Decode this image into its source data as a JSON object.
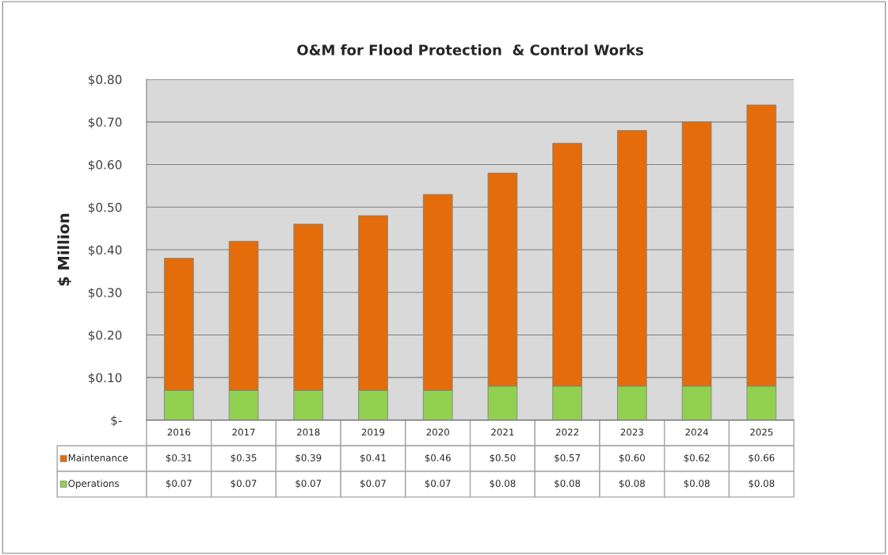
{
  "chart_data": {
    "type": "bar",
    "title": "O&M for Flood Protection  & Control Works",
    "ylabel": "$ Million",
    "categories": [
      "2016",
      "2017",
      "2018",
      "2019",
      "2020",
      "2021",
      "2022",
      "2023",
      "2024",
      "2025"
    ],
    "stacked": true,
    "series": [
      {
        "name": "Operations",
        "color": "#92d050",
        "values": [
          0.07,
          0.07,
          0.07,
          0.07,
          0.07,
          0.08,
          0.08,
          0.08,
          0.08,
          0.08
        ],
        "value_labels": [
          "$0.07",
          "$0.07",
          "$0.07",
          "$0.07",
          "$0.07",
          "$0.08",
          "$0.08",
          "$0.08",
          "$0.08",
          "$0.08"
        ]
      },
      {
        "name": "Maintenance",
        "color": "#e46c0a",
        "values": [
          0.31,
          0.35,
          0.39,
          0.41,
          0.46,
          0.5,
          0.57,
          0.6,
          0.62,
          0.66
        ],
        "value_labels": [
          "$0.31",
          "$0.35",
          "$0.39",
          "$0.41",
          "$0.46",
          "$0.50",
          "$0.57",
          "$0.60",
          "$0.62",
          "$0.66"
        ]
      }
    ],
    "ylim": [
      0,
      0.8
    ],
    "yticks": [
      {
        "value": 0,
        "label": "$-"
      },
      {
        "value": 0.1,
        "label": "$0.10"
      },
      {
        "value": 0.2,
        "label": "$0.20"
      },
      {
        "value": 0.3,
        "label": "$0.30"
      },
      {
        "value": 0.4,
        "label": "$0.40"
      },
      {
        "value": 0.5,
        "label": "$0.50"
      },
      {
        "value": 0.6,
        "label": "$0.60"
      },
      {
        "value": 0.7,
        "label": "$0.70"
      },
      {
        "value": 0.8,
        "label": "$0.80"
      }
    ],
    "grid": "y",
    "legend": "bottom"
  }
}
